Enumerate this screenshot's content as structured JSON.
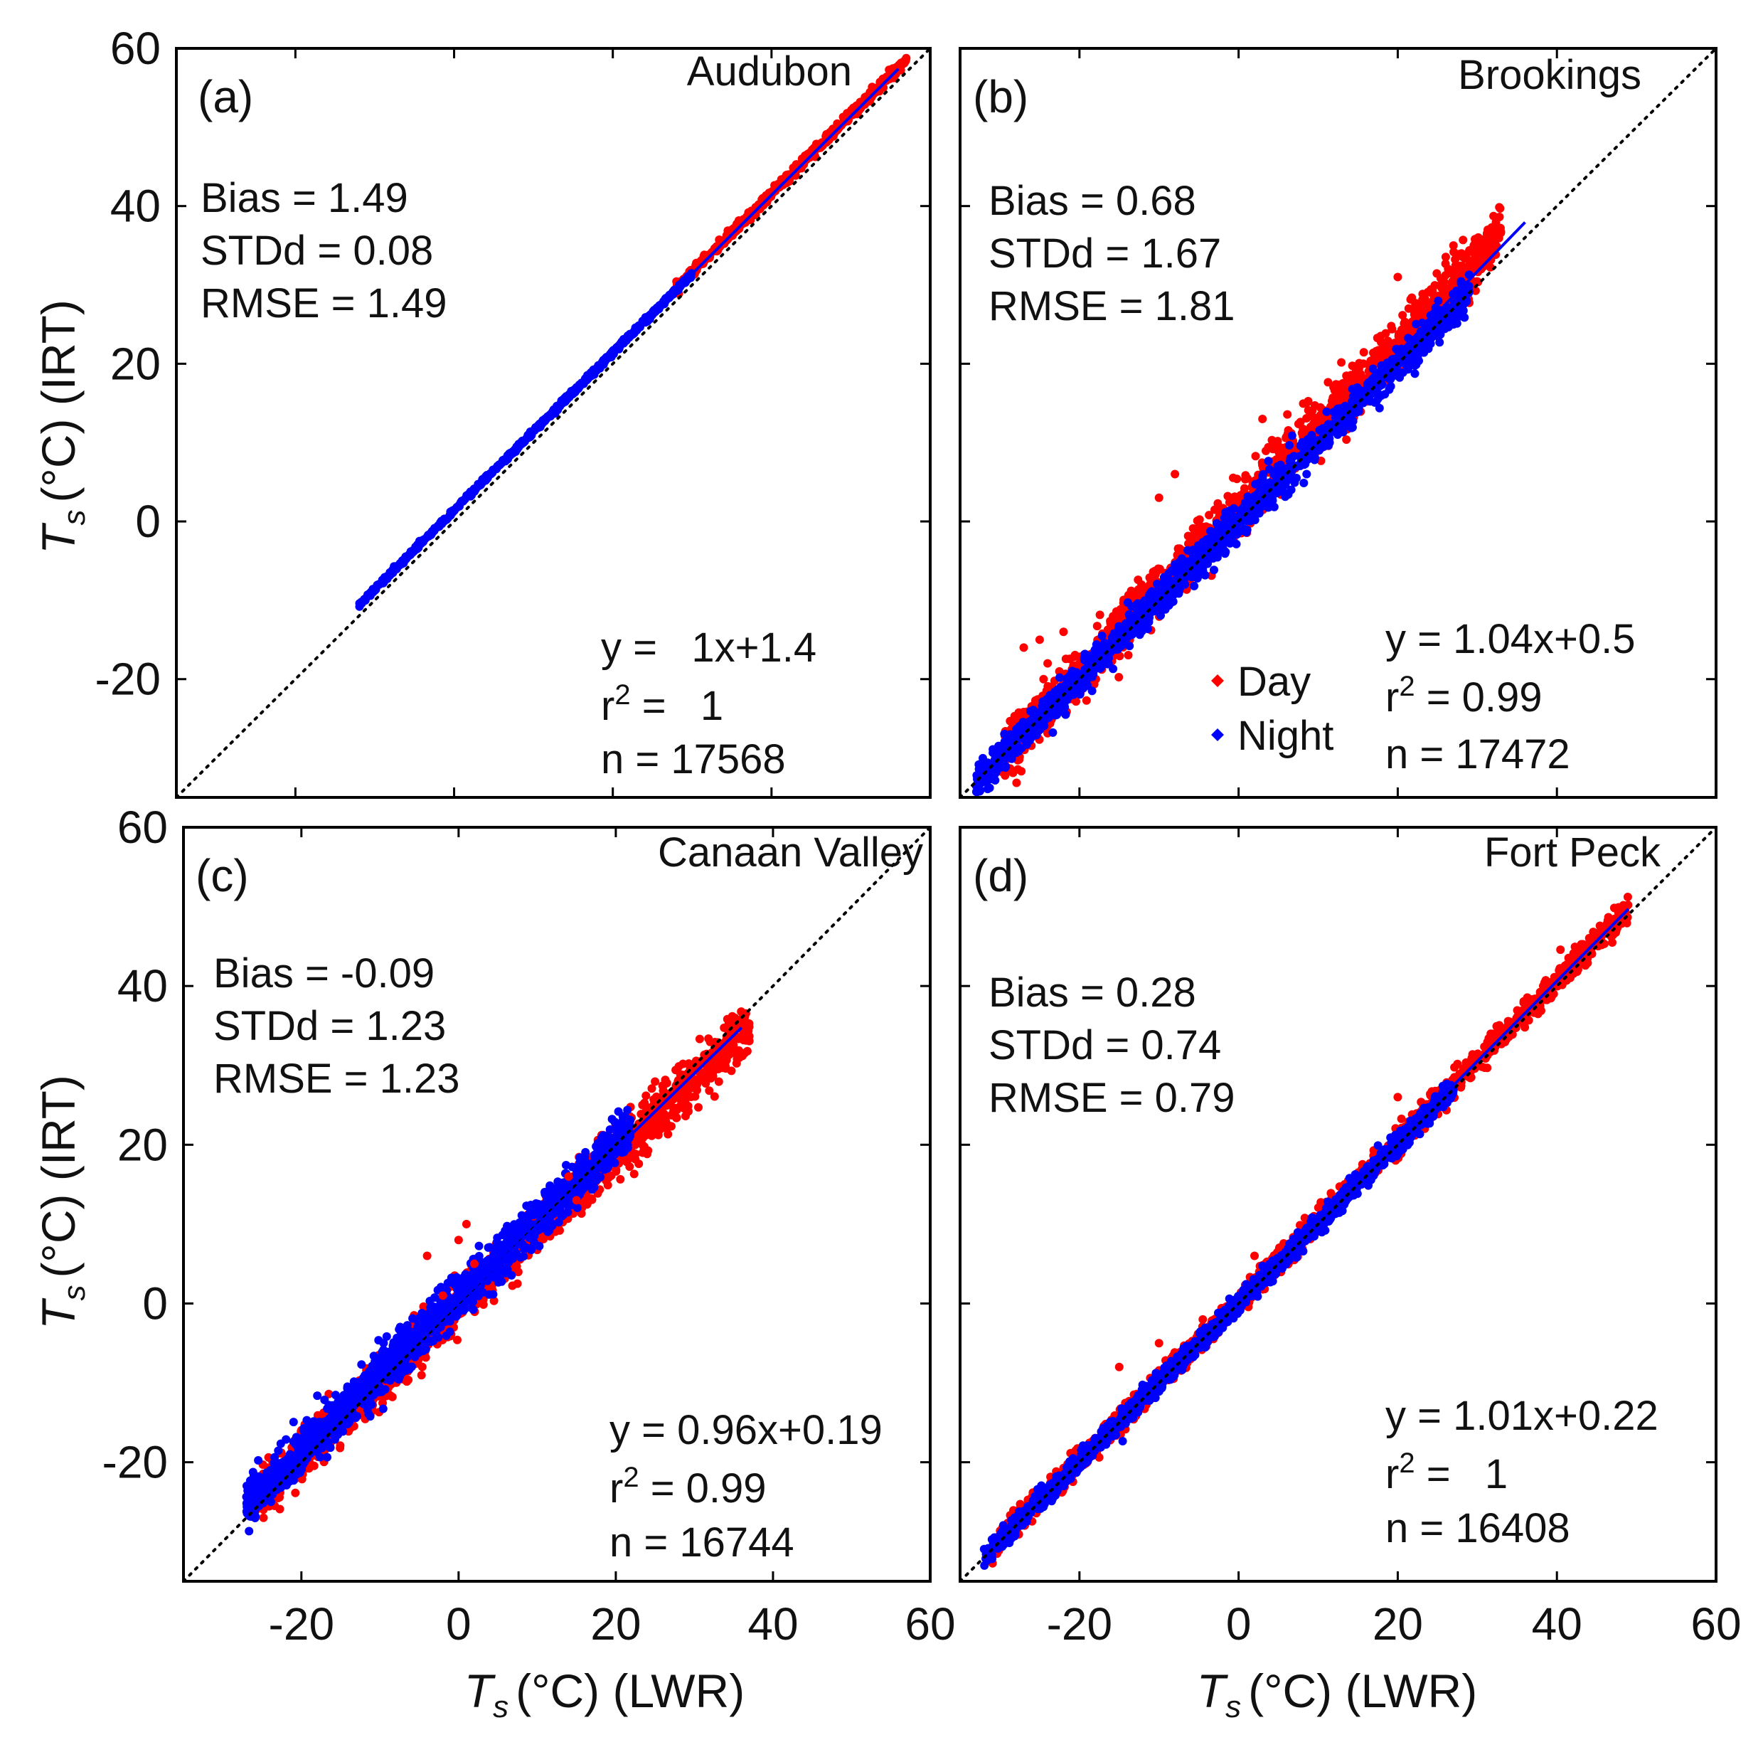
{
  "figure": {
    "xlabel_sym": "T",
    "xlabel_sub": "s",
    "xlabel_rest": "(°C) (LWR)",
    "ylabel_sym": "T",
    "ylabel_sub": "s",
    "ylabel_rest": "(°C) (IRT)",
    "colors": {
      "day": "#ff0000",
      "night": "#0000ff",
      "fit": "#0000ff",
      "one_to_one": "#000000"
    }
  },
  "legend": {
    "day": "Day",
    "night": "Night"
  },
  "chart_data": [
    {
      "type": "scatter",
      "panel": "(a)",
      "site": "Audubon",
      "stats": [
        "Bias = 1.49",
        "STDd = 0.08",
        "RMSE = 1.49"
      ],
      "fit_text": [
        "y =   1x+1.4",
        "r2 =   1",
        "n = 17568"
      ],
      "fit_line": {
        "from": 30,
        "to": 56,
        "slope": 1.0,
        "intercept": 1.4
      },
      "xlim": [
        -35,
        60
      ],
      "ylim": [
        -35,
        60
      ],
      "xticks": [
        -20,
        0,
        20,
        40,
        60
      ],
      "yticks": [
        -20,
        0,
        20,
        40,
        60
      ],
      "night_band": {
        "from": -12,
        "to": 30,
        "slope": 1.0,
        "intercept": 1.4,
        "spread": 0.15
      },
      "day_band": {
        "from": 28,
        "to": 57,
        "slope": 1.0,
        "intercept": 1.6,
        "spread": 0.3
      },
      "day_outliers": [],
      "n": 17568
    },
    {
      "type": "scatter",
      "panel": "(b)",
      "site": "Brookings",
      "stats": [
        "Bias = 0.68",
        "STDd = 1.67",
        "RMSE = 1.81"
      ],
      "fit_text": [
        "y = 1.04x+0.5",
        "r2 = 0.99",
        "n = 17472"
      ],
      "fit_line": {
        "from": 17,
        "to": 36,
        "slope": 1.04,
        "intercept": 0.5
      },
      "xlim": [
        -35,
        60
      ],
      "ylim": [
        -35,
        60
      ],
      "xticks": [
        -20,
        0,
        20,
        40,
        60
      ],
      "yticks": [
        -20,
        0,
        20,
        40,
        60
      ],
      "night_band": {
        "from": -33,
        "to": 29,
        "slope": 1.0,
        "intercept": 0.0,
        "spread": 1.1
      },
      "day_band": {
        "from": -30,
        "to": 33,
        "slope": 1.05,
        "intercept": 1.8,
        "spread": 1.7
      },
      "day_outliers": [
        [
          -27,
          -16
        ],
        [
          -25,
          -15
        ],
        [
          -24,
          -18
        ],
        [
          -22,
          -14
        ],
        [
          -10,
          3
        ],
        [
          -8,
          6
        ],
        [
          3,
          13
        ],
        [
          20,
          31
        ],
        [
          28,
          34
        ],
        [
          27,
          35
        ]
      ],
      "n": 17472
    },
    {
      "type": "scatter",
      "panel": "(c)",
      "site": "Canaan Valley",
      "stats": [
        "Bias = -0.09",
        "STDd = 1.23",
        "RMSE = 1.23"
      ],
      "fit_text": [
        "y = 0.96x+0.19",
        "r2 = 0.99",
        "n = 16744"
      ],
      "fit_line": {
        "from": -27,
        "to": 36,
        "slope": 0.96,
        "intercept": 0.19
      },
      "xlim": [
        -35,
        60
      ],
      "ylim": [
        -35,
        60
      ],
      "xticks": [
        -20,
        0,
        20,
        40,
        60
      ],
      "yticks": [
        -20,
        0,
        20,
        40,
        60
      ],
      "night_band": {
        "from": -27,
        "to": 22,
        "slope": 0.97,
        "intercept": 0.8,
        "spread": 1.4
      },
      "day_band": {
        "from": -26,
        "to": 37,
        "slope": 0.95,
        "intercept": -0.2,
        "spread": 1.6
      },
      "day_outliers": [
        [
          -4,
          6
        ],
        [
          0,
          8
        ],
        [
          1,
          10
        ],
        [
          2,
          5
        ],
        [
          14,
          16
        ],
        [
          15,
          13
        ],
        [
          -2,
          1
        ]
      ],
      "n": 16744
    },
    {
      "type": "scatter",
      "panel": "(d)",
      "site": "Fort Peck",
      "stats": [
        "Bias = 0.28",
        "STDd = 0.74",
        "RMSE = 0.79"
      ],
      "fit_text": [
        "y = 1.01x+0.22",
        "r2 =   1",
        "n = 16408"
      ],
      "fit_line": {
        "from": 27,
        "to": 49,
        "slope": 1.01,
        "intercept": 0.22
      },
      "xlim": [
        -35,
        60
      ],
      "ylim": [
        -35,
        60
      ],
      "xticks": [
        -20,
        0,
        20,
        40,
        60
      ],
      "yticks": [
        -20,
        0,
        20,
        40,
        60
      ],
      "night_band": {
        "from": -32,
        "to": 27,
        "slope": 1.0,
        "intercept": 0.1,
        "spread": 0.6
      },
      "day_band": {
        "from": -31,
        "to": 49,
        "slope": 1.01,
        "intercept": 0.3,
        "spread": 0.8
      },
      "day_outliers": [
        [
          -15,
          -8
        ],
        [
          -10,
          -5
        ],
        [
          2,
          6
        ],
        [
          20,
          26
        ]
      ],
      "n": 16408
    }
  ]
}
